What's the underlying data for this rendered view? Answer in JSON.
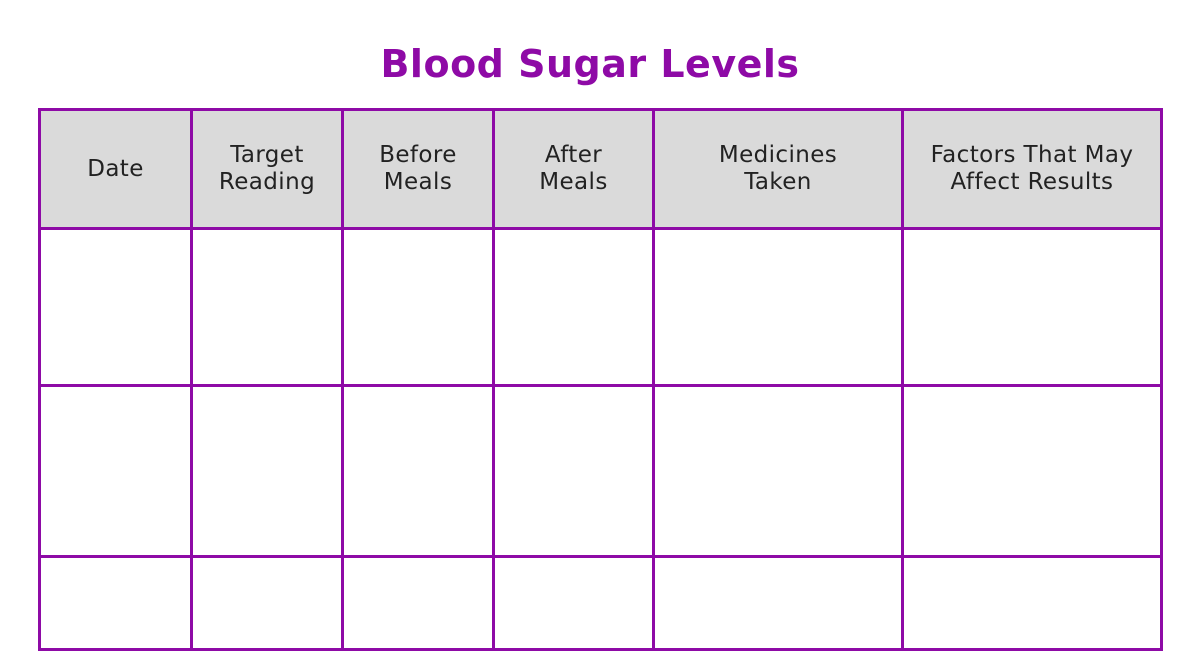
{
  "title": "Blood Sugar Levels",
  "table": {
    "columns": [
      {
        "key": "date",
        "line1": "Date",
        "line2": ""
      },
      {
        "key": "target-reading",
        "line1": "Target",
        "line2": "Reading"
      },
      {
        "key": "before-meals",
        "line1": "Before",
        "line2": "Meals"
      },
      {
        "key": "after-meals",
        "line1": "After",
        "line2": "Meals"
      },
      {
        "key": "medicines-taken",
        "line1": "Medicines",
        "line2": "Taken"
      },
      {
        "key": "factors",
        "line1": "Factors That May",
        "line2": "Affect Results"
      }
    ],
    "rows": [
      {
        "cells": [
          "",
          "",
          "",
          "",
          "",
          ""
        ]
      },
      {
        "cells": [
          "",
          "",
          "",
          "",
          "",
          ""
        ]
      },
      {
        "cells": [
          "",
          "",
          "",
          "",
          "",
          ""
        ]
      }
    ]
  },
  "colors": {
    "accent": "#8e0aa6",
    "header_background": "#dadada",
    "text": "#222222"
  }
}
